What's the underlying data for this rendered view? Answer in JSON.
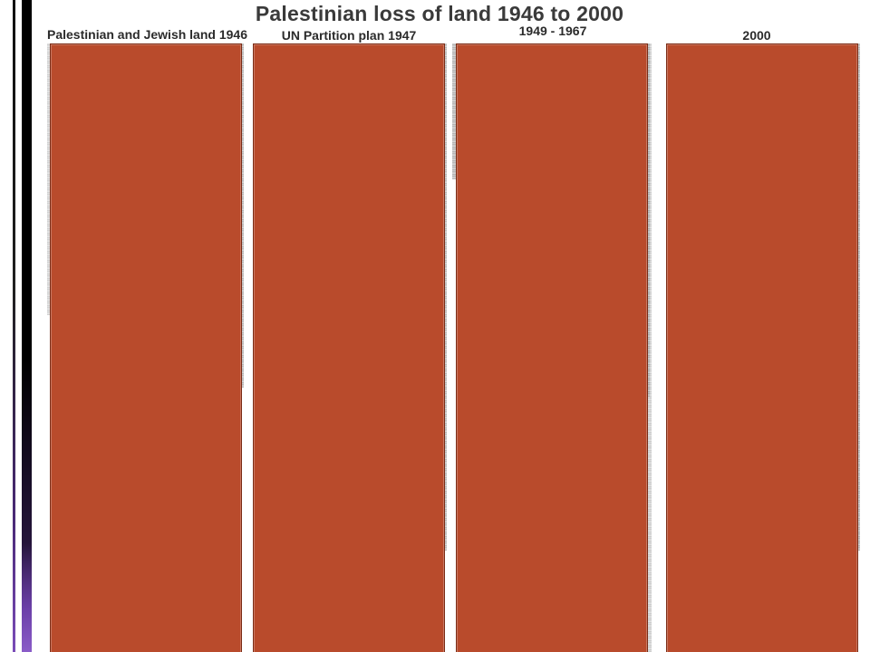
{
  "slide": {
    "title": "Palestinian loss of land 1946 to 2000",
    "columns": [
      {
        "label": "Palestinian and Jewish land 1946"
      },
      {
        "label": "UN Partition plan  1947"
      },
      {
        "label": "1949 - 1967"
      },
      {
        "label": "2000"
      }
    ]
  },
  "colors": {
    "panel_fill": "#b94b2c",
    "panel_border": "#7a2c16",
    "accent_bar": "#000000",
    "accent_purple": "#7a4cb8",
    "title_text": "#3a3a3a"
  }
}
